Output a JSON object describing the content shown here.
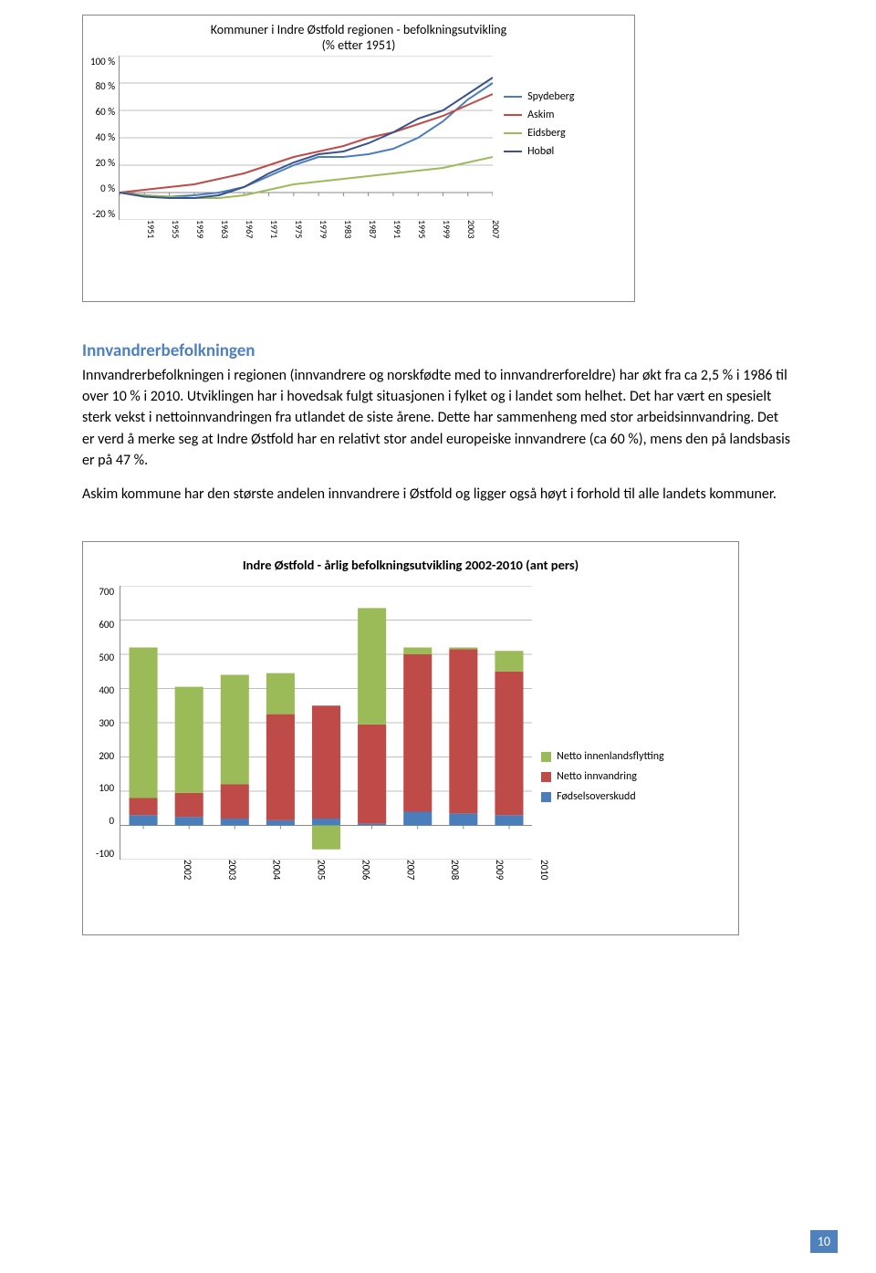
{
  "chart1": {
    "type": "line",
    "title_line1": "Kommuner i Indre Østfold regionen - befolkningsutvikling",
    "title_line2": "(% etter 1951)",
    "title_fontsize": 14,
    "ylim": [
      -20,
      100
    ],
    "ytick_step": 20,
    "yticks": [
      "100 %",
      "80 %",
      "60 %",
      "40 %",
      "20 %",
      "0 %",
      "-20 %"
    ],
    "xticks": [
      "1951",
      "1955",
      "1959",
      "1963",
      "1967",
      "1971",
      "1975",
      "1979",
      "1983",
      "1987",
      "1991",
      "1995",
      "1999",
      "2003",
      "2007"
    ],
    "background_color": "#ffffff",
    "grid_color": "#bfbfbf",
    "axis_color": "#888888",
    "label_fontsize": 11,
    "line_width": 2,
    "series": [
      {
        "name": "Spydeberg",
        "color": "#4a7ebb",
        "values": [
          0,
          -2,
          -3,
          -2,
          0,
          4,
          12,
          20,
          26,
          26,
          28,
          32,
          40,
          52,
          68,
          80
        ]
      },
      {
        "name": "Askim",
        "color": "#be4b48",
        "values": [
          0,
          2,
          4,
          6,
          10,
          14,
          20,
          26,
          30,
          34,
          40,
          44,
          50,
          56,
          64,
          72
        ]
      },
      {
        "name": "Eidsberg",
        "color": "#9bbb59",
        "values": [
          0,
          -2,
          -3,
          -4,
          -4,
          -2,
          2,
          6,
          8,
          10,
          12,
          14,
          16,
          18,
          22,
          26
        ]
      },
      {
        "name": "Hobøl",
        "color": "#3b528b",
        "values": [
          0,
          -3,
          -4,
          -4,
          -2,
          4,
          14,
          22,
          28,
          30,
          36,
          44,
          54,
          60,
          72,
          84
        ]
      }
    ]
  },
  "heading": "Innvandrerbefolkningen",
  "para1": "Innvandrerbefolkningen i regionen (innvandrere og norskfødte med to innvandrerforeldre) har økt fra ca 2,5 % i 1986 til over 10 % i 2010. Utviklingen har i hovedsak fulgt situasjonen i fylket og i landet som helhet. Det har vært en spesielt sterk vekst i nettoinnvandringen fra utlandet de siste årene. Dette har sammenheng med stor arbeidsinnvandring. Det er verd å merke seg at Indre Østfold har en relativt stor andel europeiske innvandrere (ca 60 %), mens den på landsbasis er på 47 %.",
  "para2": "Askim kommune har den største andelen innvandrere i Østfold og ligger også høyt i forhold til alle landets kommuner.",
  "chart2": {
    "type": "stacked-bar",
    "title": "Indre Østfold - årlig befolkningsutvikling 2002-2010  (ant pers)",
    "title_fontsize": 14.5,
    "ylim": [
      -100,
      700
    ],
    "ytick_step": 100,
    "yticks": [
      "700",
      "600",
      "500",
      "400",
      "300",
      "200",
      "100",
      "0",
      "-100"
    ],
    "xticks": [
      "2002",
      "2003",
      "2004",
      "2005",
      "2006",
      "2007",
      "2008",
      "2009",
      "2010"
    ],
    "background_color": "#ffffff",
    "grid_color": "#bfbfbf",
    "axis_color": "#888888",
    "label_fontsize": 11,
    "bar_width": 0.62,
    "legend": [
      {
        "name": "Netto innenlandsflytting",
        "color": "#9bbb59"
      },
      {
        "name": "Netto innvandring",
        "color": "#be4b48"
      },
      {
        "name": "Fødselsoverskudd",
        "color": "#4a7ebb"
      }
    ],
    "years": [
      "2002",
      "2003",
      "2004",
      "2005",
      "2006",
      "2007",
      "2008",
      "2009",
      "2010"
    ],
    "fodsel": [
      30,
      25,
      20,
      15,
      20,
      5,
      40,
      35,
      30
    ],
    "innvand": [
      50,
      70,
      100,
      310,
      330,
      290,
      460,
      480,
      420
    ],
    "innenland": [
      440,
      310,
      320,
      120,
      -70,
      340,
      20,
      5,
      60
    ]
  },
  "page_number": "10"
}
